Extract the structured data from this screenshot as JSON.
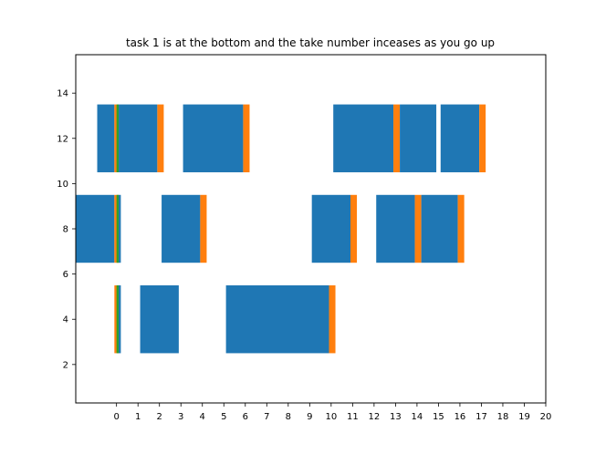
{
  "chart_data": {
    "type": "bar",
    "title": "task 1 is at the bottom and the take number inceases as you go up",
    "xlabel": "",
    "ylabel": "",
    "xlim": [
      -1.9,
      20
    ],
    "ylim": [
      0.3,
      15.7
    ],
    "xticks": [
      0,
      1,
      2,
      3,
      4,
      5,
      6,
      7,
      8,
      9,
      10,
      11,
      12,
      13,
      14,
      15,
      16,
      17,
      18,
      19,
      20
    ],
    "yticks": [
      2,
      4,
      6,
      8,
      10,
      12,
      14
    ],
    "grid": false,
    "colors": {
      "blue": "#1f77b4",
      "orange": "#ff7f0e",
      "green": "#2ca02c"
    },
    "tasks": [
      {
        "center": 4,
        "height": 3,
        "segments": [
          {
            "start": -0.1,
            "end": 0.1,
            "color": "orange"
          },
          {
            "start": 0.0,
            "end": 0.1,
            "color": "green"
          },
          {
            "start": 0.1,
            "end": 0.2,
            "color": "blue"
          },
          {
            "start": 1.1,
            "end": 2.9,
            "color": "blue"
          },
          {
            "start": 5.1,
            "end": 9.9,
            "color": "blue"
          },
          {
            "start": 9.9,
            "end": 10.2,
            "color": "orange"
          }
        ]
      },
      {
        "center": 8,
        "height": 3,
        "segments": [
          {
            "start": -1.9,
            "end": -0.1,
            "color": "blue"
          },
          {
            "start": -0.1,
            "end": 0.1,
            "color": "orange"
          },
          {
            "start": 0.0,
            "end": 0.1,
            "color": "green"
          },
          {
            "start": 0.1,
            "end": 0.2,
            "color": "blue"
          },
          {
            "start": 2.1,
            "end": 3.9,
            "color": "blue"
          },
          {
            "start": 3.9,
            "end": 4.2,
            "color": "orange"
          },
          {
            "start": 9.1,
            "end": 10.9,
            "color": "blue"
          },
          {
            "start": 10.9,
            "end": 11.2,
            "color": "orange"
          },
          {
            "start": 12.1,
            "end": 13.9,
            "color": "blue"
          },
          {
            "start": 13.9,
            "end": 14.2,
            "color": "orange"
          },
          {
            "start": 14.2,
            "end": 15.9,
            "color": "blue"
          },
          {
            "start": 15.9,
            "end": 16.2,
            "color": "orange"
          }
        ]
      },
      {
        "center": 12,
        "height": 3,
        "segments": [
          {
            "start": -0.9,
            "end": -0.1,
            "color": "blue"
          },
          {
            "start": -0.1,
            "end": 0.1,
            "color": "orange"
          },
          {
            "start": 0.0,
            "end": 0.1,
            "color": "green"
          },
          {
            "start": 0.1,
            "end": 1.9,
            "color": "blue"
          },
          {
            "start": 1.9,
            "end": 2.2,
            "color": "orange"
          },
          {
            "start": 3.1,
            "end": 5.9,
            "color": "blue"
          },
          {
            "start": 5.9,
            "end": 6.2,
            "color": "orange"
          },
          {
            "start": 10.1,
            "end": 12.9,
            "color": "blue"
          },
          {
            "start": 12.9,
            "end": 13.2,
            "color": "orange"
          },
          {
            "start": 13.2,
            "end": 14.9,
            "color": "blue"
          },
          {
            "start": 15.1,
            "end": 16.9,
            "color": "blue"
          },
          {
            "start": 16.9,
            "end": 17.2,
            "color": "orange"
          }
        ]
      }
    ]
  }
}
